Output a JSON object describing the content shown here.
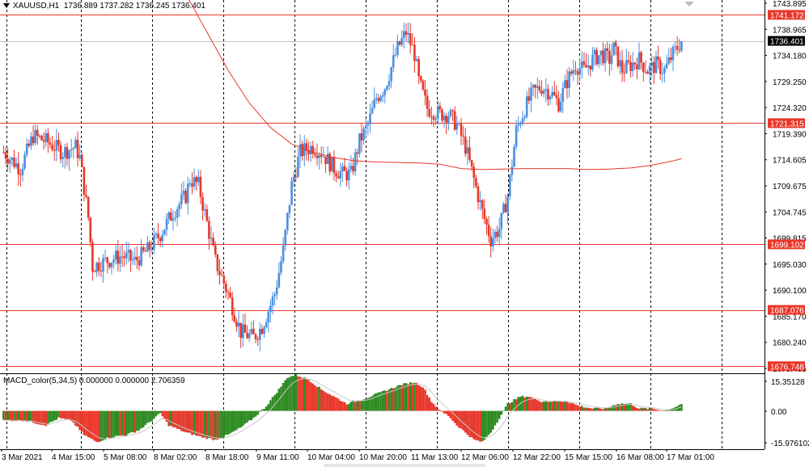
{
  "header": {
    "symbol": "XAUUSD,H1",
    "ohlc": "1736.889 1737.282 1736.245 1736.401"
  },
  "indicator": {
    "label": "MACD_color(5,34,5) 0.000000 0.000000 2.706359"
  },
  "colors": {
    "bull": "#4a8fe0",
    "bear": "#e8372a",
    "level_line": "#e8372a",
    "ma_line": "#e8372a",
    "macd_up": "#2e8b22",
    "macd_down": "#e8372a",
    "price_tag_bg": "#e8372a",
    "current_tag_bg": "#000000"
  },
  "chart_data": [
    {
      "type": "candlestick",
      "ylim": [
        1675.455,
        1743.895
      ],
      "price_axis_ticks": [
        "1743.895",
        "1738.965",
        "1734.180",
        "1729.250",
        "1724.320",
        "1719.390",
        "1714.605",
        "1709.675",
        "1704.745",
        "1699.815",
        "1695.030",
        "1690.100",
        "1685.170",
        "1680.240",
        "1675.455"
      ],
      "x_tick_labels": [
        "3 Mar 2021",
        "4 Mar 15:00",
        "5 Mar 08:00",
        "8 Mar 02:00",
        "8 Mar 18:00",
        "9 Mar 11:00",
        "10 Mar 04:00",
        "10 Mar 20:00",
        "11 Mar 13:00",
        "12 Mar 06:00",
        "12 Mar 22:00",
        "15 Mar 15:00",
        "16 Mar 08:00",
        "17 Mar 01:00"
      ],
      "current_price": 1736.401,
      "horizontal_levels": [
        1741.172,
        1721.315,
        1699.102,
        1687.076,
        1676.748
      ],
      "anchors": [
        [
          0,
          1716
        ],
        [
          8,
          1713
        ],
        [
          14,
          1719
        ],
        [
          20,
          1718
        ],
        [
          28,
          1716
        ],
        [
          34,
          1717
        ],
        [
          36,
          1715
        ],
        [
          40,
          1704
        ],
        [
          42,
          1695
        ],
        [
          48,
          1696
        ],
        [
          56,
          1697
        ],
        [
          62,
          1696
        ],
        [
          68,
          1698
        ],
        [
          74,
          1701
        ],
        [
          80,
          1705
        ],
        [
          86,
          1708
        ],
        [
          88,
          1711
        ],
        [
          92,
          1710
        ],
        [
          96,
          1703
        ],
        [
          100,
          1696
        ],
        [
          106,
          1690
        ],
        [
          112,
          1683
        ],
        [
          118,
          1682
        ],
        [
          122,
          1684
        ],
        [
          128,
          1690
        ],
        [
          132,
          1698
        ],
        [
          136,
          1710
        ],
        [
          140,
          1716
        ],
        [
          146,
          1717
        ],
        [
          150,
          1716
        ],
        [
          156,
          1713
        ],
        [
          160,
          1712
        ],
        [
          164,
          1712
        ],
        [
          168,
          1718
        ],
        [
          172,
          1721
        ],
        [
          176,
          1726
        ],
        [
          180,
          1728
        ],
        [
          186,
          1735
        ],
        [
          190,
          1738
        ],
        [
          194,
          1734
        ],
        [
          196,
          1729
        ],
        [
          200,
          1724
        ],
        [
          206,
          1723
        ],
        [
          210,
          1723
        ],
        [
          214,
          1721
        ],
        [
          218,
          1717
        ],
        [
          222,
          1711
        ],
        [
          226,
          1705
        ],
        [
          230,
          1700
        ],
        [
          234,
          1702
        ],
        [
          238,
          1708
        ],
        [
          242,
          1720
        ],
        [
          246,
          1724
        ],
        [
          250,
          1727
        ],
        [
          254,
          1728
        ],
        [
          258,
          1727
        ],
        [
          262,
          1725
        ],
        [
          266,
          1729
        ],
        [
          270,
          1732
        ],
        [
          274,
          1731
        ],
        [
          278,
          1733
        ],
        [
          282,
          1734
        ],
        [
          286,
          1733
        ],
        [
          288,
          1735
        ],
        [
          292,
          1731
        ],
        [
          296,
          1732
        ],
        [
          300,
          1733
        ],
        [
          304,
          1731
        ],
        [
          308,
          1732
        ],
        [
          312,
          1731
        ],
        [
          316,
          1734
        ],
        [
          320,
          1736.4
        ]
      ],
      "moving_average": [
        [
          86,
          1745
        ],
        [
          96,
          1738
        ],
        [
          106,
          1731
        ],
        [
          116,
          1725
        ],
        [
          126,
          1720.5
        ],
        [
          136,
          1717.5
        ],
        [
          146,
          1716
        ],
        [
          156,
          1715
        ],
        [
          166,
          1714.4
        ],
        [
          176,
          1714.2
        ],
        [
          186,
          1714.1
        ],
        [
          196,
          1714
        ],
        [
          206,
          1713.8
        ],
        [
          216,
          1713
        ],
        [
          226,
          1712.8
        ],
        [
          236,
          1712.9
        ],
        [
          246,
          1713
        ],
        [
          256,
          1713
        ],
        [
          266,
          1713
        ],
        [
          276,
          1712.8
        ],
        [
          286,
          1712.9
        ],
        [
          296,
          1713.1
        ],
        [
          306,
          1713.6
        ],
        [
          316,
          1714.4
        ],
        [
          320,
          1714.8
        ]
      ]
    },
    {
      "type": "histogram",
      "name": "MACD_color(5,34,5)",
      "ylim": [
        -15.976102,
        15.35128
      ],
      "axis_ticks": [
        "15.35128",
        "0.00",
        "-15.976102"
      ],
      "anchors": [
        [
          0,
          -4
        ],
        [
          10,
          -4
        ],
        [
          20,
          -6
        ],
        [
          26,
          -3
        ],
        [
          32,
          -4
        ],
        [
          38,
          -10
        ],
        [
          44,
          -13
        ],
        [
          50,
          -11
        ],
        [
          58,
          -10
        ],
        [
          64,
          -8
        ],
        [
          70,
          -4
        ],
        [
          74,
          -1
        ],
        [
          78,
          -6
        ],
        [
          86,
          -9
        ],
        [
          94,
          -11
        ],
        [
          100,
          -12
        ],
        [
          106,
          -10
        ],
        [
          112,
          -7
        ],
        [
          118,
          -3
        ],
        [
          124,
          2
        ],
        [
          130,
          9
        ],
        [
          134,
          14
        ],
        [
          138,
          15
        ],
        [
          144,
          13
        ],
        [
          150,
          9
        ],
        [
          156,
          6
        ],
        [
          162,
          3
        ],
        [
          170,
          5
        ],
        [
          176,
          7
        ],
        [
          182,
          9
        ],
        [
          188,
          11
        ],
        [
          194,
          12
        ],
        [
          198,
          10
        ],
        [
          202,
          4
        ],
        [
          206,
          0
        ],
        [
          210,
          -2
        ],
        [
          214,
          -6
        ],
        [
          218,
          -9
        ],
        [
          222,
          -12
        ],
        [
          226,
          -13
        ],
        [
          230,
          -9
        ],
        [
          234,
          -3
        ],
        [
          238,
          3
        ],
        [
          244,
          6
        ],
        [
          248,
          6
        ],
        [
          254,
          4
        ],
        [
          260,
          4
        ],
        [
          266,
          4
        ],
        [
          272,
          2
        ],
        [
          278,
          1
        ],
        [
          284,
          1
        ],
        [
          290,
          3
        ],
        [
          296,
          3
        ],
        [
          300,
          1
        ],
        [
          306,
          1
        ],
        [
          312,
          0
        ],
        [
          318,
          2
        ],
        [
          320,
          3
        ]
      ]
    }
  ]
}
